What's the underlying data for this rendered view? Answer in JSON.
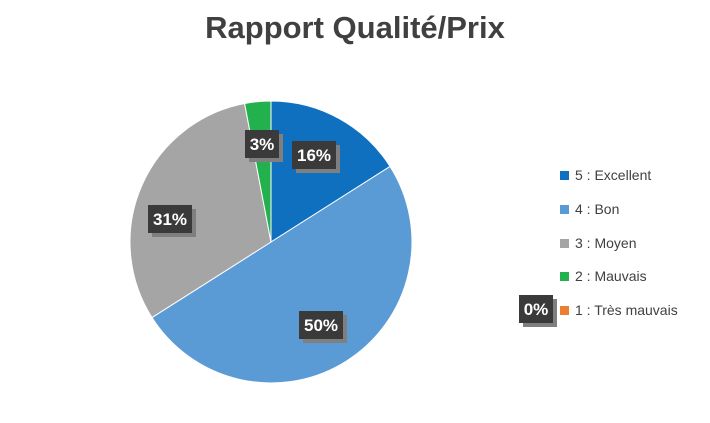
{
  "chart_data": {
    "type": "pie",
    "title": "Rapport Qualité/Prix",
    "slices": [
      {
        "label": "5 : Excellent",
        "value": 16,
        "display": "16%",
        "color": "#0f70c0"
      },
      {
        "label": "4 : Bon",
        "value": 50,
        "display": "50%",
        "color": "#5b9bd5"
      },
      {
        "label": "3 : Moyen",
        "value": 31,
        "display": "31%",
        "color": "#a5a5a5"
      },
      {
        "label": "2 : Mauvais",
        "value": 3,
        "display": "3%",
        "color": "#22b14c"
      },
      {
        "label": "1 :  Très mauvais",
        "value": 0,
        "display": "0%",
        "color": "#ed7d31"
      }
    ],
    "legend_position": "right",
    "data_label_style": {
      "background": "#3a3a3a",
      "shadow": "#7f7f7f",
      "text": "#ffffff"
    }
  }
}
